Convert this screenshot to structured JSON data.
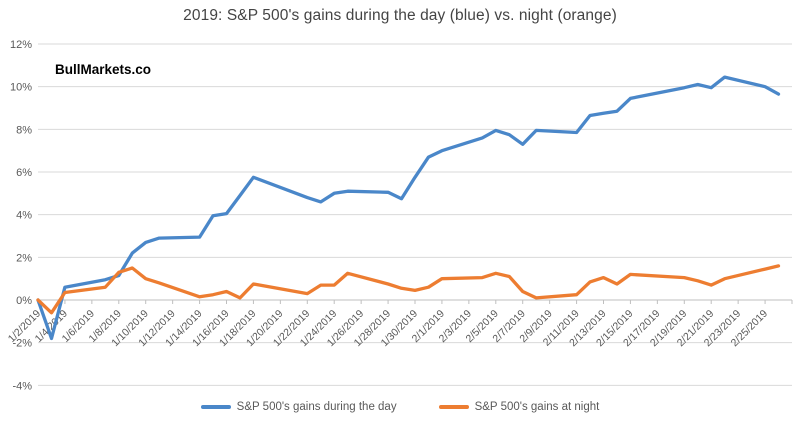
{
  "title": "2019: S&P 500's gains during the day (blue) vs. night (orange)",
  "watermark": "BullMarkets.co",
  "chart_data": {
    "type": "line",
    "x": [
      "1/2/2019",
      "1/3/2019",
      "1/4/2019",
      "1/7/2019",
      "1/8/2019",
      "1/9/2019",
      "1/10/2019",
      "1/11/2019",
      "1/14/2019",
      "1/15/2019",
      "1/16/2019",
      "1/17/2019",
      "1/18/2019",
      "1/22/2019",
      "1/23/2019",
      "1/24/2019",
      "1/25/2019",
      "1/28/2019",
      "1/29/2019",
      "1/30/2019",
      "1/31/2019",
      "2/1/2019",
      "2/4/2019",
      "2/5/2019",
      "2/6/2019",
      "2/7/2019",
      "2/8/2019",
      "2/11/2019",
      "2/12/2019",
      "2/13/2019",
      "2/14/2019",
      "2/15/2019",
      "2/19/2019",
      "2/20/2019",
      "2/21/2019",
      "2/22/2019",
      "2/25/2019",
      "2/26/2019"
    ],
    "series": [
      {
        "name": "S&P 500's gains during the day",
        "color": "#4A87C9",
        "values": [
          0,
          -1.8,
          0.6,
          0.95,
          1.15,
          2.2,
          2.7,
          2.9,
          2.95,
          3.95,
          4.05,
          4.9,
          5.75,
          4.8,
          4.6,
          5.0,
          5.1,
          5.05,
          4.75,
          5.75,
          6.7,
          7.0,
          7.6,
          7.95,
          7.75,
          7.3,
          7.95,
          7.85,
          8.65,
          8.75,
          8.85,
          9.45,
          9.95,
          10.1,
          9.95,
          10.45,
          10.0,
          9.65
        ]
      },
      {
        "name": "S&P 500's gains at night",
        "color": "#ED7D31",
        "values": [
          0,
          -0.6,
          0.35,
          0.6,
          1.3,
          1.5,
          1.0,
          0.8,
          0.15,
          0.25,
          0.4,
          0.1,
          0.75,
          0.3,
          0.7,
          0.7,
          1.25,
          0.75,
          0.55,
          0.45,
          0.6,
          1.0,
          1.05,
          1.25,
          1.1,
          0.4,
          0.1,
          0.25,
          0.85,
          1.05,
          0.75,
          1.2,
          1.05,
          0.9,
          0.7,
          1.0,
          1.45,
          1.6
        ]
      }
    ],
    "ylim": [
      -4,
      12
    ],
    "y_tick_labels": [
      "12%",
      "10%",
      "8%",
      "6%",
      "4%",
      "2%",
      "0%",
      "-2%",
      "-4%"
    ],
    "x_tick_labels": [
      "1/2/2019",
      "1/4/2019",
      "1/6/2019",
      "1/8/2019",
      "1/10/2019",
      "1/12/2019",
      "1/14/2019",
      "1/16/2019",
      "1/18/2019",
      "1/20/2019",
      "1/22/2019",
      "1/24/2019",
      "1/26/2019",
      "1/28/2019",
      "1/30/2019",
      "2/1/2019",
      "2/3/2019",
      "2/5/2019",
      "2/7/2019",
      "2/9/2019",
      "2/11/2019",
      "2/13/2019",
      "2/15/2019",
      "2/17/2019",
      "2/19/2019",
      "2/21/2019",
      "2/23/2019",
      "2/25/2019"
    ],
    "grid": true,
    "legend_position": "bottom",
    "colors": {
      "gridline": "#D9D9D9",
      "axis": "#BFBFBF",
      "tick_text": "#595959",
      "title_text": "#444444"
    }
  }
}
